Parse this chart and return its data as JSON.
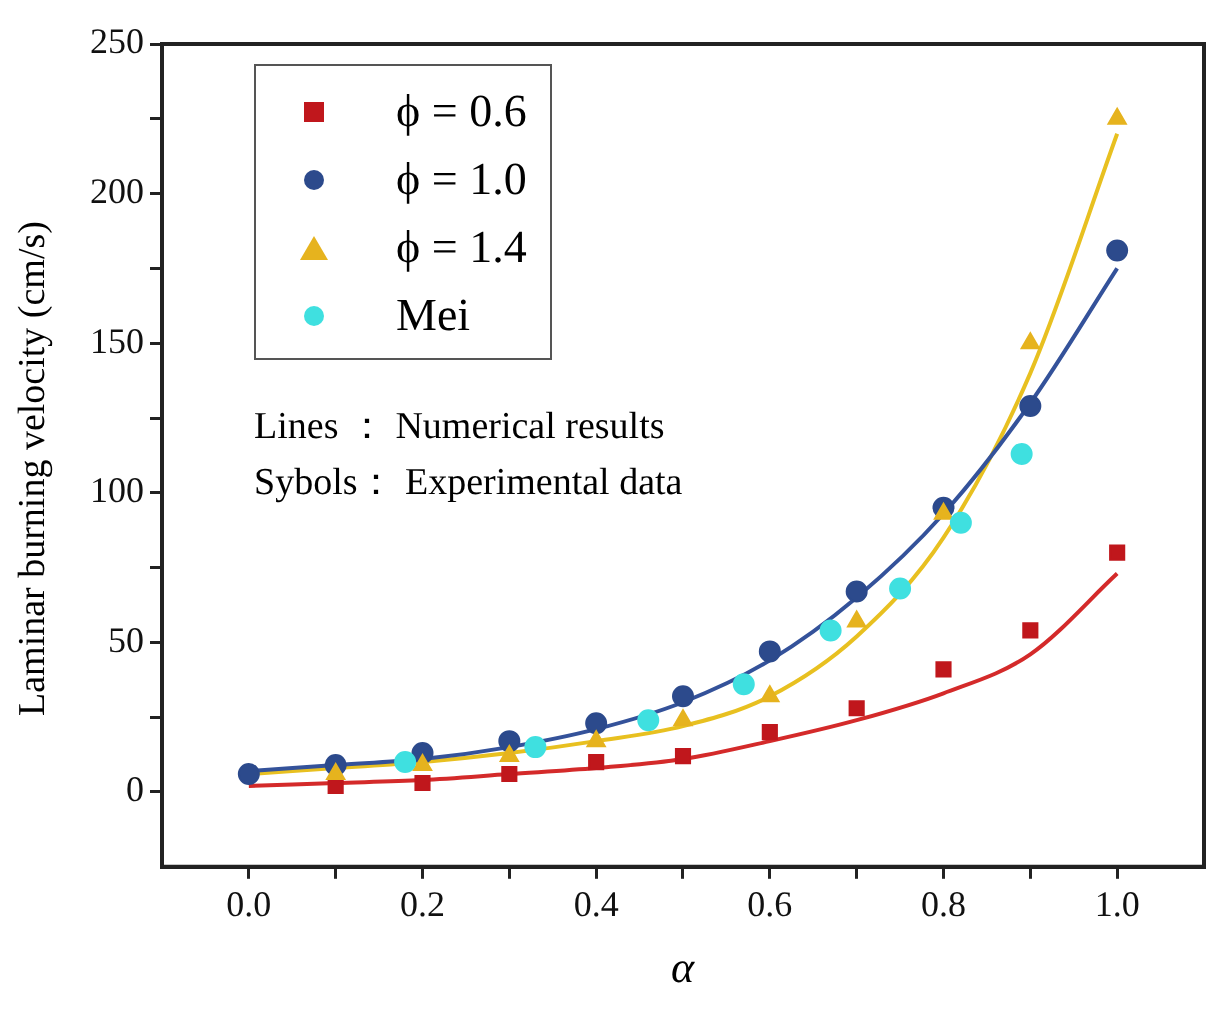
{
  "chart_data": {
    "type": "scatter",
    "xlabel": "α",
    "ylabel": "Laminar burning velocity (cm/s)",
    "xlim": [
      -0.1,
      1.1
    ],
    "ylim": [
      -25,
      250
    ],
    "xticks": [
      {
        "value": 0,
        "label": "0.0"
      },
      {
        "value": 0.1,
        "label": null
      },
      {
        "value": 0.2,
        "label": "0.2"
      },
      {
        "value": 0.3,
        "label": null
      },
      {
        "value": 0.4,
        "label": "0.4"
      },
      {
        "value": 0.5,
        "label": null
      },
      {
        "value": 0.6,
        "label": "0.6"
      },
      {
        "value": 0.7,
        "label": null
      },
      {
        "value": 0.8,
        "label": "0.8"
      },
      {
        "value": 0.9,
        "label": null
      },
      {
        "value": 1,
        "label": "1.0"
      }
    ],
    "yticks": [
      0,
      {
        "value": 25,
        "label": null
      },
      50,
      {
        "value": 75,
        "label": null
      },
      100,
      {
        "value": 125,
        "label": null
      },
      150,
      {
        "value": 175,
        "label": null
      },
      200,
      {
        "value": 225,
        "label": null
      },
      250
    ],
    "grid": false,
    "legend": "top left",
    "annotations": [
      "Lines ： Numerical results",
      "Sybols： Experimental data"
    ],
    "series": [
      {
        "name": "ϕ = 0.6",
        "marker": "square",
        "color": "#c0171c",
        "x": [
          0.1,
          0.2,
          0.3,
          0.4,
          0.5,
          0.6,
          0.7,
          0.8,
          0.9,
          1.0
        ],
        "values": [
          2,
          3,
          6,
          10,
          12,
          20,
          28,
          41,
          54,
          80
        ]
      },
      {
        "name": "ϕ = 1.0",
        "marker": "circle",
        "color": "#2c4a8c",
        "x": [
          0,
          0.1,
          0.2,
          0.3,
          0.4,
          0.5,
          0.6,
          0.7,
          0.8,
          0.9,
          1.0
        ],
        "values": [
          6,
          9,
          13,
          17,
          23,
          32,
          47,
          67,
          95,
          129,
          181
        ]
      },
      {
        "name": "ϕ = 1.4",
        "marker": "triangle",
        "color": "#e6b31e",
        "x": [
          0.1,
          0.2,
          0.3,
          0.4,
          0.5,
          0.6,
          0.7,
          0.8,
          0.9,
          1.0
        ],
        "values": [
          6,
          9,
          12,
          17,
          24,
          32,
          57,
          93,
          150,
          225
        ]
      },
      {
        "name": "Mei",
        "marker": "circle",
        "color": "#3fe0e0",
        "x": [
          0.18,
          0.33,
          0.46,
          0.57,
          0.67,
          0.75,
          0.82,
          0.89
        ],
        "values": [
          10,
          15,
          24,
          36,
          54,
          68,
          90,
          113
        ]
      },
      {
        "type": "line",
        "marker": "none",
        "color": "#d42a2a",
        "x": [
          0,
          0.1,
          0.2,
          0.3,
          0.4,
          0.5,
          0.6,
          0.7,
          0.8,
          0.9,
          1.0
        ],
        "values": [
          2,
          3,
          4,
          6,
          8,
          11,
          17,
          24,
          33,
          46,
          73
        ]
      },
      {
        "type": "line",
        "marker": "none",
        "color": "#34529a",
        "x": [
          0,
          0.1,
          0.2,
          0.3,
          0.4,
          0.5,
          0.6,
          0.7,
          0.8,
          0.9,
          1.0
        ],
        "values": [
          7,
          9,
          11,
          15,
          21,
          30,
          44,
          65,
          93,
          130,
          175
        ]
      },
      {
        "type": "line",
        "marker": "none",
        "color": "#e8c020",
        "x": [
          0,
          0.1,
          0.2,
          0.3,
          0.4,
          0.5,
          0.6,
          0.7,
          0.8,
          0.9,
          1.0
        ],
        "values": [
          6,
          8,
          10,
          13,
          17,
          22,
          32,
          52,
          85,
          140,
          220
        ]
      }
    ]
  }
}
